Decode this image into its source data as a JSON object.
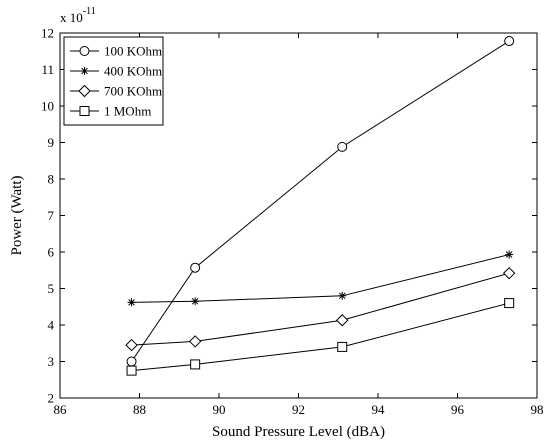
{
  "chart_data": {
    "type": "line",
    "title": "",
    "xlabel": "Sound Pressure Level (dBA)",
    "ylabel": "Power (Watt)",
    "y_multiplier_base": "x 10",
    "y_multiplier_exp": "-11",
    "xlim": [
      86,
      98
    ],
    "ylim": [
      2,
      12
    ],
    "xticks": [
      86,
      88,
      90,
      92,
      94,
      96,
      98
    ],
    "yticks": [
      2,
      3,
      4,
      5,
      6,
      7,
      8,
      9,
      10,
      11,
      12
    ],
    "grid": false,
    "legend_position": "top-left",
    "x": [
      87.8,
      89.4,
      93.1,
      97.3
    ],
    "series": [
      {
        "name": "100 KOhm",
        "marker": "circle",
        "values": [
          3.0,
          5.57,
          8.88,
          11.78
        ]
      },
      {
        "name": "400 KOhm",
        "marker": "star",
        "values": [
          4.62,
          4.65,
          4.8,
          5.93
        ]
      },
      {
        "name": "700 KOhm",
        "marker": "diamond",
        "values": [
          3.45,
          3.55,
          4.13,
          5.42
        ]
      },
      {
        "name": "1 MOhm",
        "marker": "square",
        "values": [
          2.75,
          2.92,
          3.4,
          4.6
        ]
      }
    ],
    "colors": {
      "line": "#000000",
      "background": "#ffffff"
    }
  }
}
